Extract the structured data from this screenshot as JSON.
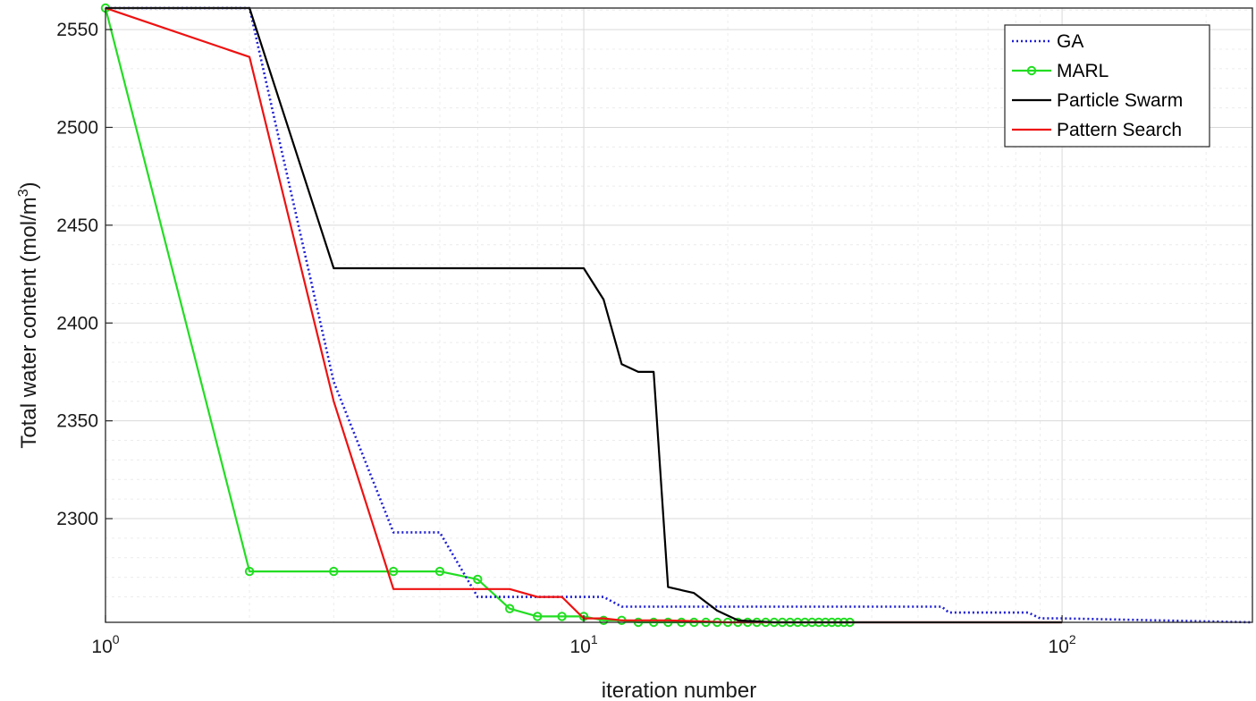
{
  "chart_data": {
    "type": "line",
    "xlabel": "iteration number",
    "ylabel_main": "Total water content (mol/m",
    "ylabel_sup": "3",
    "ylabel_close": ")",
    "xscale": "log",
    "xlim": [
      1,
      250
    ],
    "ylim": [
      2247,
      2561
    ],
    "yticks": [
      2300,
      2350,
      2400,
      2450,
      2500,
      2550
    ],
    "xticks": [
      {
        "value": 1,
        "base": "10",
        "exp": "0"
      },
      {
        "value": 10,
        "base": "10",
        "exp": "1"
      },
      {
        "value": 100,
        "base": "10",
        "exp": "2"
      }
    ],
    "grid": true,
    "minor_grid": true,
    "legend_position": "top-right",
    "series": [
      {
        "name": "GA",
        "color": "#1f1fd6",
        "style": "dotted",
        "marker": "none",
        "points": [
          [
            1,
            2561
          ],
          [
            2,
            2561
          ],
          [
            3,
            2370
          ],
          [
            4,
            2293
          ],
          [
            5,
            2293
          ],
          [
            6,
            2260
          ],
          [
            7,
            2260
          ],
          [
            8,
            2260
          ],
          [
            9,
            2260
          ],
          [
            10,
            2260
          ],
          [
            11,
            2260
          ],
          [
            12,
            2255
          ],
          [
            20,
            2255
          ],
          [
            40,
            2255
          ],
          [
            56,
            2255
          ],
          [
            58,
            2252
          ],
          [
            85,
            2252
          ],
          [
            90,
            2249
          ],
          [
            100,
            2249
          ],
          [
            250,
            2247
          ]
        ]
      },
      {
        "name": "MARL",
        "color": "#22dd22",
        "style": "solid",
        "marker": "circle",
        "points": [
          [
            1,
            2561
          ],
          [
            2,
            2273
          ],
          [
            3,
            2273
          ],
          [
            4,
            2273
          ],
          [
            5,
            2273
          ],
          [
            6,
            2269
          ],
          [
            7,
            2254
          ],
          [
            8,
            2250
          ],
          [
            9,
            2250
          ],
          [
            10,
            2250
          ],
          [
            11,
            2248
          ],
          [
            12,
            2248
          ],
          [
            13,
            2247
          ],
          [
            14,
            2247
          ],
          [
            15,
            2247
          ],
          [
            16,
            2247
          ],
          [
            17,
            2247
          ],
          [
            18,
            2247
          ],
          [
            19,
            2247
          ],
          [
            20,
            2247
          ],
          [
            21,
            2247
          ],
          [
            22,
            2247
          ],
          [
            23,
            2247
          ],
          [
            24,
            2247
          ],
          [
            25,
            2247
          ],
          [
            26,
            2247
          ],
          [
            27,
            2247
          ],
          [
            28,
            2247
          ],
          [
            29,
            2247
          ],
          [
            30,
            2247
          ],
          [
            31,
            2247
          ],
          [
            32,
            2247
          ],
          [
            33,
            2247
          ],
          [
            34,
            2247
          ],
          [
            35,
            2247
          ],
          [
            36,
            2247
          ]
        ]
      },
      {
        "name": "Particle Swarm",
        "color": "#000000",
        "style": "solid",
        "marker": "none",
        "points": [
          [
            1,
            2561
          ],
          [
            2,
            2561
          ],
          [
            3,
            2428
          ],
          [
            4,
            2428
          ],
          [
            5,
            2428
          ],
          [
            6,
            2428
          ],
          [
            7,
            2428
          ],
          [
            8,
            2428
          ],
          [
            9,
            2428
          ],
          [
            10,
            2428
          ],
          [
            11,
            2412
          ],
          [
            12,
            2379
          ],
          [
            13,
            2375
          ],
          [
            14,
            2375
          ],
          [
            15,
            2265
          ],
          [
            17,
            2262
          ],
          [
            19,
            2253
          ],
          [
            21,
            2248
          ],
          [
            25,
            2247
          ],
          [
            40,
            2247
          ],
          [
            60,
            2247
          ],
          [
            100,
            2247
          ]
        ]
      },
      {
        "name": "Pattern Search",
        "color": "#ee1111",
        "style": "solid",
        "marker": "none",
        "points": [
          [
            1,
            2561
          ],
          [
            2,
            2536
          ],
          [
            3,
            2360
          ],
          [
            4,
            2264
          ],
          [
            5,
            2264
          ],
          [
            6,
            2264
          ],
          [
            7,
            2264
          ],
          [
            8,
            2260
          ],
          [
            9,
            2260
          ],
          [
            10,
            2249
          ],
          [
            11,
            2249
          ],
          [
            12,
            2248
          ],
          [
            15,
            2248
          ],
          [
            20,
            2247
          ],
          [
            40,
            2247
          ],
          [
            60,
            2247
          ],
          [
            100,
            2247
          ]
        ]
      }
    ]
  }
}
